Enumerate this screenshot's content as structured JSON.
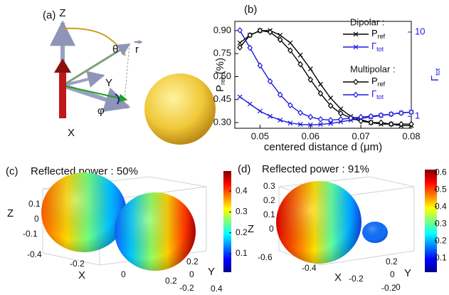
{
  "panel_a": {
    "label": "(a)",
    "axis_z": "Z",
    "theta": "θ",
    "r": "r",
    "axis_y": "Y",
    "phi": "φ",
    "axis_x": "X"
  },
  "chart_data": {
    "type": "line",
    "label": "(b)",
    "xlabel": "centered distance d (μm)",
    "ylabel": {
      "text": "P",
      "subscript": "ref",
      "suffix": " (%)"
    },
    "y2label": {
      "text": "Γ",
      "subscript": "tot"
    },
    "legend_groups": [
      "Dipolar :",
      "Multipolar :"
    ],
    "x": [
      0.046,
      0.048,
      0.05,
      0.052,
      0.054,
      0.056,
      0.058,
      0.06,
      0.062,
      0.064,
      0.066,
      0.068,
      0.07,
      0.072,
      0.074,
      0.076,
      0.078,
      0.08
    ],
    "xlim": [
      0.045,
      0.08
    ],
    "xticks": [
      0.05,
      0.06,
      0.07,
      0.08
    ],
    "ylim": [
      0.263,
      0.96
    ],
    "yticks": [
      {
        "value": 0.3,
        "label": "0.30"
      },
      0.45,
      {
        "value": 0.6,
        "label": "0.60"
      },
      0.75,
      {
        "value": 0.9,
        "label": "0.90"
      }
    ],
    "y2lim": [
      0.72,
      13.4
    ],
    "y2log": true,
    "y2ticks": [
      1,
      10
    ],
    "series": [
      {
        "name": "P",
        "subscript": "ref",
        "color": "#000000",
        "marker": "x",
        "values": [
          0.82,
          0.87,
          0.9,
          0.9,
          0.87,
          0.82,
          0.74,
          0.65,
          0.55,
          0.46,
          0.39,
          0.34,
          0.32,
          0.3,
          0.29,
          0.29,
          0.28,
          0.28
        ]
      },
      {
        "name": "Γ",
        "subscript": "tot",
        "color": "#1a1adc",
        "marker": "x",
        "axis": "y2",
        "values": [
          1.7,
          1.4,
          1.15,
          1.0,
          0.9,
          0.83,
          0.8,
          0.79,
          0.8,
          0.82,
          0.86,
          0.9,
          0.94,
          0.98,
          1.02,
          1.06,
          1.1,
          1.12
        ]
      },
      {
        "name": "P",
        "subscript": "ref",
        "color": "#000000",
        "marker": "diamond",
        "values": [
          0.79,
          0.87,
          0.9,
          0.89,
          0.84,
          0.77,
          0.68,
          0.58,
          0.49,
          0.41,
          0.36,
          0.33,
          0.31,
          0.3,
          0.3,
          0.29,
          0.29,
          0.29
        ]
      },
      {
        "name": "Γ",
        "subscript": "tot",
        "color": "#1a1adc",
        "marker": "diamond",
        "axis": "y2",
        "values": [
          10.5,
          6.5,
          4.0,
          2.6,
          1.8,
          1.35,
          1.1,
          0.98,
          0.92,
          0.9,
          0.92,
          0.95,
          0.98,
          1.0,
          1.03,
          1.06,
          1.09,
          1.12
        ]
      }
    ]
  },
  "panel_c": {
    "label": "(c)",
    "title": "Reflected power : 50%",
    "z_ticks": [
      "0.1",
      "0",
      "-0.1"
    ],
    "z_label": "Z",
    "x_ticks": [
      "-0.4",
      "-0.2",
      "0",
      "0.2",
      "0.4"
    ],
    "x_label": "X",
    "y_ticks": [
      "0.2",
      "0",
      "-0.2"
    ],
    "y_label": "Y",
    "colorbar": {
      "lim": [
        0.011,
        0.496
      ],
      "ticks": [
        0.1,
        0.2,
        0.3,
        0.4
      ]
    }
  },
  "panel_d": {
    "label": "(d)",
    "title": "Reflected power : 91%",
    "z_ticks": [
      "0.3",
      "0.2",
      "0.1",
      "0"
    ],
    "z_label": "Z",
    "x_ticks": [
      "-0.6",
      "-0.4",
      "-0.2",
      "0"
    ],
    "x_label": "X",
    "y_ticks": [
      "0.2",
      "0",
      "-0.2"
    ],
    "y_label": "Y",
    "colorbar": {
      "lim": [
        0.017,
        0.617
      ],
      "ticks": [
        0.1,
        0.2,
        0.3,
        0.4,
        0.5,
        0.6
      ]
    }
  }
}
